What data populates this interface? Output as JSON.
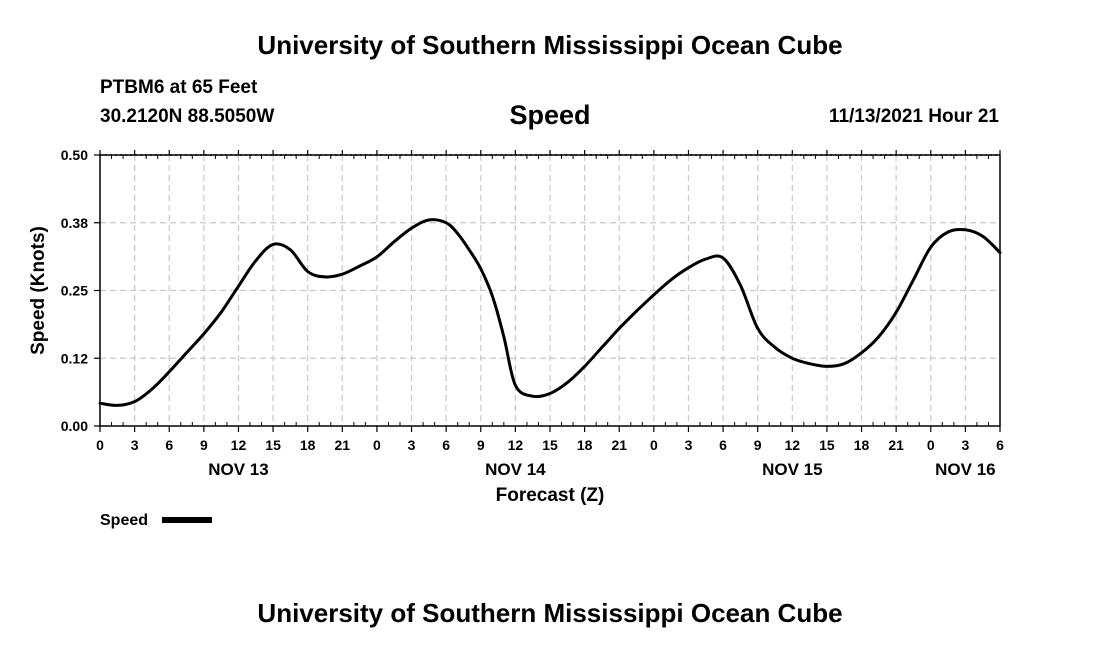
{
  "header": {
    "top_title": "University of Southern Mississippi Ocean Cube",
    "bottom_title": "University of Southern Mississippi Ocean Cube",
    "station": "PTBM6 at 65 Feet",
    "coords": "30.2120N  88.5050W",
    "chart_title": "Speed",
    "timestamp": "11/13/2021 Hour 21"
  },
  "colors": {
    "line": "#000000",
    "grid": "#c8c8c8",
    "background": "#ffffff"
  },
  "chart_data": {
    "type": "line",
    "title": "Speed",
    "xlabel": "Forecast (Z)",
    "ylabel": "Speed (Knots)",
    "ylim": [
      0,
      0.5
    ],
    "xlim": [
      0,
      78
    ],
    "x_unit": "hours since NOV 13 00Z",
    "y_ticks": [
      "0.00",
      "0.12",
      "0.25",
      "0.38",
      "0.50"
    ],
    "y_tick_values": [
      0,
      0.125,
      0.25,
      0.375,
      0.5
    ],
    "x_tick_labels": [
      "0",
      "3",
      "6",
      "9",
      "12",
      "15",
      "18",
      "21",
      "0",
      "3",
      "6",
      "9",
      "12",
      "15",
      "18",
      "21",
      "0",
      "3",
      "6",
      "9",
      "12",
      "15",
      "18",
      "21",
      "0",
      "3",
      "6"
    ],
    "x_tick_hours": [
      0,
      3,
      6,
      9,
      12,
      15,
      18,
      21,
      24,
      27,
      30,
      33,
      36,
      39,
      42,
      45,
      48,
      51,
      54,
      57,
      60,
      63,
      66,
      69,
      72,
      75,
      78
    ],
    "day_labels": [
      {
        "label": "NOV 13",
        "hour": 12
      },
      {
        "label": "NOV 14",
        "hour": 36
      },
      {
        "label": "NOV 15",
        "hour": 60
      },
      {
        "label": "NOV 16",
        "hour": 75
      }
    ],
    "grid": true,
    "legend": "bottom-left",
    "series": [
      {
        "name": "Speed",
        "x": [
          0,
          1.5,
          3,
          4.5,
          6,
          7.5,
          9,
          10.5,
          12,
          13.5,
          15,
          16.5,
          18,
          19.5,
          21,
          22.5,
          24,
          25.5,
          27,
          28.5,
          30,
          31,
          32,
          33,
          34,
          35,
          36,
          37.5,
          39,
          40.5,
          42,
          43.5,
          45,
          46.5,
          48,
          49.5,
          51,
          52.5,
          54,
          55.5,
          57,
          58.5,
          60,
          61.5,
          63,
          64.5,
          66,
          67.5,
          69,
          70.5,
          72,
          73.5,
          75,
          76.5,
          78
        ],
        "y": [
          0.042,
          0.038,
          0.045,
          0.068,
          0.1,
          0.135,
          0.17,
          0.21,
          0.258,
          0.305,
          0.335,
          0.325,
          0.285,
          0.275,
          0.28,
          0.295,
          0.312,
          0.34,
          0.365,
          0.38,
          0.375,
          0.355,
          0.325,
          0.29,
          0.24,
          0.165,
          0.075,
          0.055,
          0.06,
          0.08,
          0.11,
          0.145,
          0.18,
          0.212,
          0.242,
          0.27,
          0.292,
          0.308,
          0.31,
          0.26,
          0.18,
          0.145,
          0.125,
          0.115,
          0.11,
          0.115,
          0.135,
          0.165,
          0.21,
          0.27,
          0.33,
          0.358,
          0.362,
          0.35,
          0.32
        ]
      }
    ]
  }
}
